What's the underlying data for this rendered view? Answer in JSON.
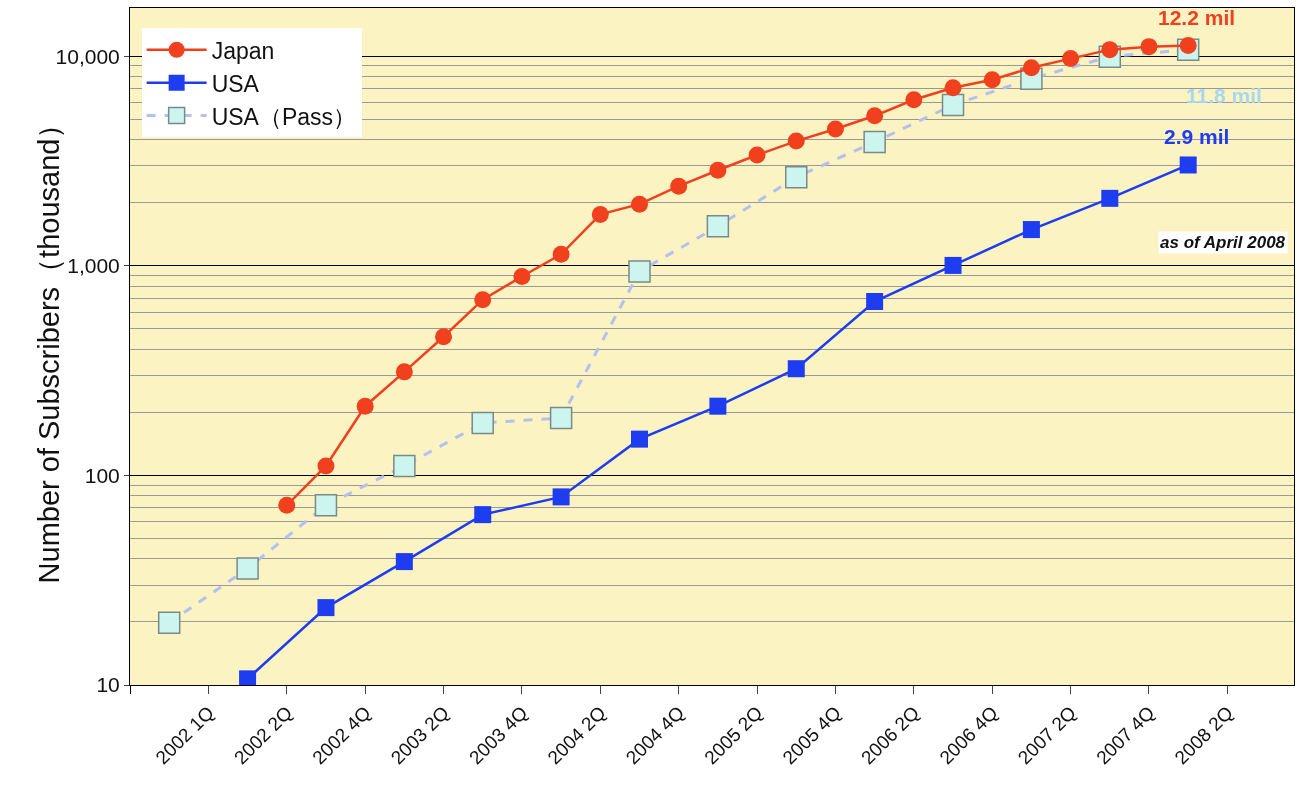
{
  "chart_data": {
    "type": "line",
    "ylabel": "Number of Subscribers（thousand）",
    "categories": [
      null,
      null,
      "2002 1Q",
      null,
      "2002 2Q",
      null,
      "2002 4Q",
      null,
      "2003 2Q",
      null,
      "2003 4Q",
      null,
      "2004 2Q",
      null,
      "2004 4Q",
      null,
      "2005 2Q",
      null,
      "2005 4Q",
      null,
      "2006 2Q",
      null,
      "2006 4Q",
      null,
      "2007 2Q",
      null,
      "2007 4Q",
      null,
      "2008 2Q",
      null
    ],
    "series": [
      {
        "name": "Japan",
        "color": "#f0401e",
        "marker": "circle",
        "line_style": "solid",
        "values": [
          null,
          null,
          null,
          null,
          72,
          111,
          214,
          312,
          459,
          690,
          890,
          1135,
          1760,
          1970,
          2400,
          2860,
          3380,
          3940,
          4500,
          5200,
          6200,
          7080,
          7730,
          8810,
          9750,
          10760,
          11120,
          11250,
          null,
          null
        ]
      },
      {
        "name": "USA",
        "color": "#1e3cf0",
        "marker": "square",
        "line_style": "solid",
        "values": [
          null,
          null,
          null,
          10.7,
          null,
          23.4,
          null,
          38.8,
          null,
          65,
          null,
          79,
          null,
          149,
          null,
          214,
          null,
          323,
          null,
          676,
          null,
          1005,
          null,
          1490,
          null,
          2100,
          null,
          3030,
          null,
          null
        ]
      },
      {
        "name": "USA（Pass）",
        "color": "#b4c0f0",
        "marker": "square",
        "line_style": "dashed",
        "values": [
          null,
          19.8,
          null,
          36,
          null,
          72,
          null,
          111,
          null,
          178,
          null,
          188,
          null,
          940,
          null,
          1545,
          null,
          2650,
          null,
          3900,
          null,
          5860,
          null,
          7820,
          null,
          9960,
          null,
          10760,
          null,
          null
        ]
      }
    ],
    "log": "y",
    "ylim": [
      10,
      17000
    ],
    "yticks": [
      10,
      100,
      {
        "value": 1000,
        "label": "1,000"
      },
      {
        "value": 10000,
        "label": "10,000"
      }
    ],
    "grid": "y",
    "legend": "top left",
    "annotations": [
      "12.2 mil",
      "2.9 mil",
      "11.8 mil",
      "as of April 2008"
    ]
  }
}
